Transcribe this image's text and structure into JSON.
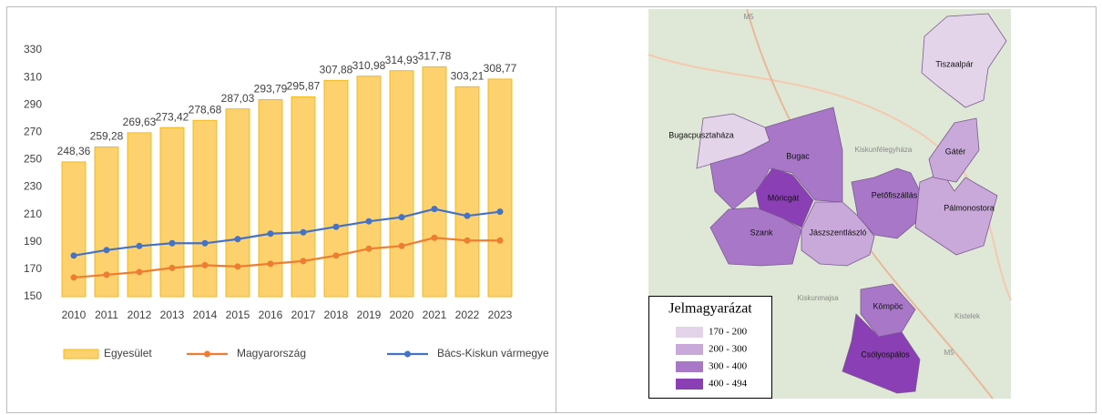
{
  "chart_data": {
    "type": "bar",
    "categories": [
      "2010",
      "2011",
      "2012",
      "2013",
      "2014",
      "2015",
      "2016",
      "2017",
      "2018",
      "2019",
      "2020",
      "2021",
      "2022",
      "2023"
    ],
    "series": [
      {
        "name": "Egyesület",
        "type": "bar",
        "color": "#fdd26e",
        "values": [
          248.36,
          259.28,
          269.63,
          273.42,
          278.68,
          287.03,
          293.79,
          295.87,
          307.88,
          310.98,
          314.93,
          317.78,
          303.21,
          308.77
        ],
        "value_labels": [
          "248,36",
          "259,28",
          "269,63",
          "273,42",
          "278,68",
          "287,03",
          "293,79",
          "295,87",
          "307,88",
          "310,98",
          "314,93",
          "317,78",
          "303,21",
          "308,77"
        ]
      },
      {
        "name": "Magyarország",
        "type": "line",
        "color": "#ed7d31",
        "values": [
          164,
          166,
          168,
          171,
          173,
          172,
          174,
          176,
          180,
          185,
          187,
          193,
          191,
          191
        ]
      },
      {
        "name": "Bács-Kiskun vármegye",
        "type": "line",
        "color": "#4472c4",
        "values": [
          180,
          184,
          187,
          189,
          189,
          192,
          196,
          197,
          201,
          205,
          208,
          214,
          209,
          212
        ]
      }
    ],
    "ylim": [
      150,
      330
    ],
    "yticks": [
      150,
      170,
      190,
      210,
      230,
      250,
      270,
      290,
      310,
      330
    ],
    "grid": false,
    "legend": "bottom"
  },
  "map": {
    "place_labels": [
      "M5",
      "Kiskunfélegyháza",
      "Kiskunmajsa",
      "Kistelek",
      "M5"
    ],
    "regions": [
      {
        "name": "Tiszaalpár",
        "color": "#e4d4ea"
      },
      {
        "name": "Bugacpusztaháza",
        "color": "#e4d4ea"
      },
      {
        "name": "Bugac",
        "color": "#a877c8"
      },
      {
        "name": "Móricgát",
        "color": "#8a3fb4"
      },
      {
        "name": "Szank",
        "color": "#a877c8"
      },
      {
        "name": "Jászszentlászló",
        "color": "#c9a8da"
      },
      {
        "name": "Petőfiszállás",
        "color": "#a877c8"
      },
      {
        "name": "Pálmonostora",
        "color": "#c9a8da"
      },
      {
        "name": "Gátér",
        "color": "#c9a8da"
      },
      {
        "name": "Kömpöc",
        "color": "#a877c8"
      },
      {
        "name": "Csólyospálos",
        "color": "#8a3fb4"
      }
    ],
    "legend": {
      "title": "Jelmagyarázat",
      "items": [
        {
          "label": "170 - 200",
          "color": "#e4d4ea"
        },
        {
          "label": "200 - 300",
          "color": "#c9a8da"
        },
        {
          "label": "300 - 400",
          "color": "#a877c8"
        },
        {
          "label": "400 - 494",
          "color": "#8a3fb4"
        }
      ]
    }
  }
}
